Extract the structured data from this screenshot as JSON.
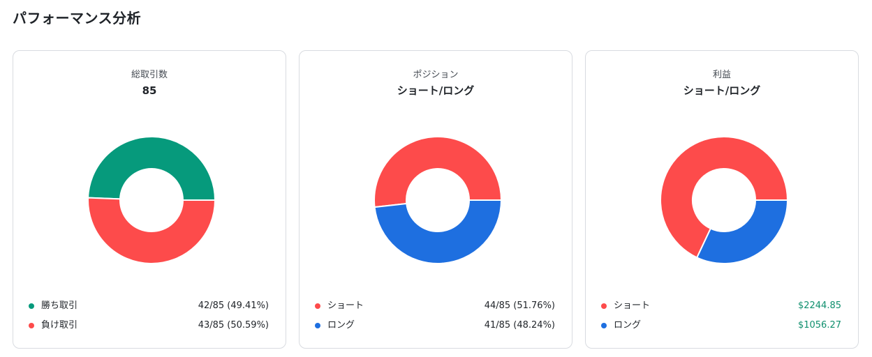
{
  "page": {
    "title": "パフォーマンス分析"
  },
  "colors": {
    "win": "#069a7c",
    "loss": "#fd4b4b",
    "short": "#fd4b4b",
    "long": "#1e6fe0",
    "profit_text": "#0e8f6d"
  },
  "cards": [
    {
      "label": "総取引数",
      "value": "85",
      "legend": [
        {
          "label": "勝ち取引",
          "value": "42/85 (49.41%)",
          "color": "#069a7c"
        },
        {
          "label": "負け取引",
          "value": "43/85 (50.59%)",
          "color": "#fd4b4b"
        }
      ]
    },
    {
      "label": "ポジション",
      "value": "ショート/ロング",
      "legend": [
        {
          "label": "ショート",
          "value": "44/85 (51.76%)",
          "color": "#fd4b4b"
        },
        {
          "label": "ロング",
          "value": "41/85 (48.24%)",
          "color": "#1e6fe0"
        }
      ]
    },
    {
      "label": "利益",
      "value": "ショート/ロング",
      "legend": [
        {
          "label": "ショート",
          "value": "$2244.85",
          "color": "#fd4b4b"
        },
        {
          "label": "ロング",
          "value": "$1056.27",
          "color": "#1e6fe0"
        }
      ]
    }
  ],
  "chart_data": [
    {
      "type": "pie",
      "categories": [
        "勝ち取引",
        "負け取引"
      ],
      "values": [
        42,
        43
      ],
      "colors": [
        "#069a7c",
        "#fd4b4b"
      ],
      "title": "85"
    },
    {
      "type": "pie",
      "categories": [
        "ショート",
        "ロング"
      ],
      "values": [
        44,
        41
      ],
      "colors": [
        "#fd4b4b",
        "#1e6fe0"
      ],
      "title": "ショート/ロング"
    },
    {
      "type": "pie",
      "categories": [
        "ショート",
        "ロング"
      ],
      "values": [
        2244.85,
        1056.27
      ],
      "colors": [
        "#fd4b4b",
        "#1e6fe0"
      ],
      "title": "ショート/ロング"
    }
  ]
}
